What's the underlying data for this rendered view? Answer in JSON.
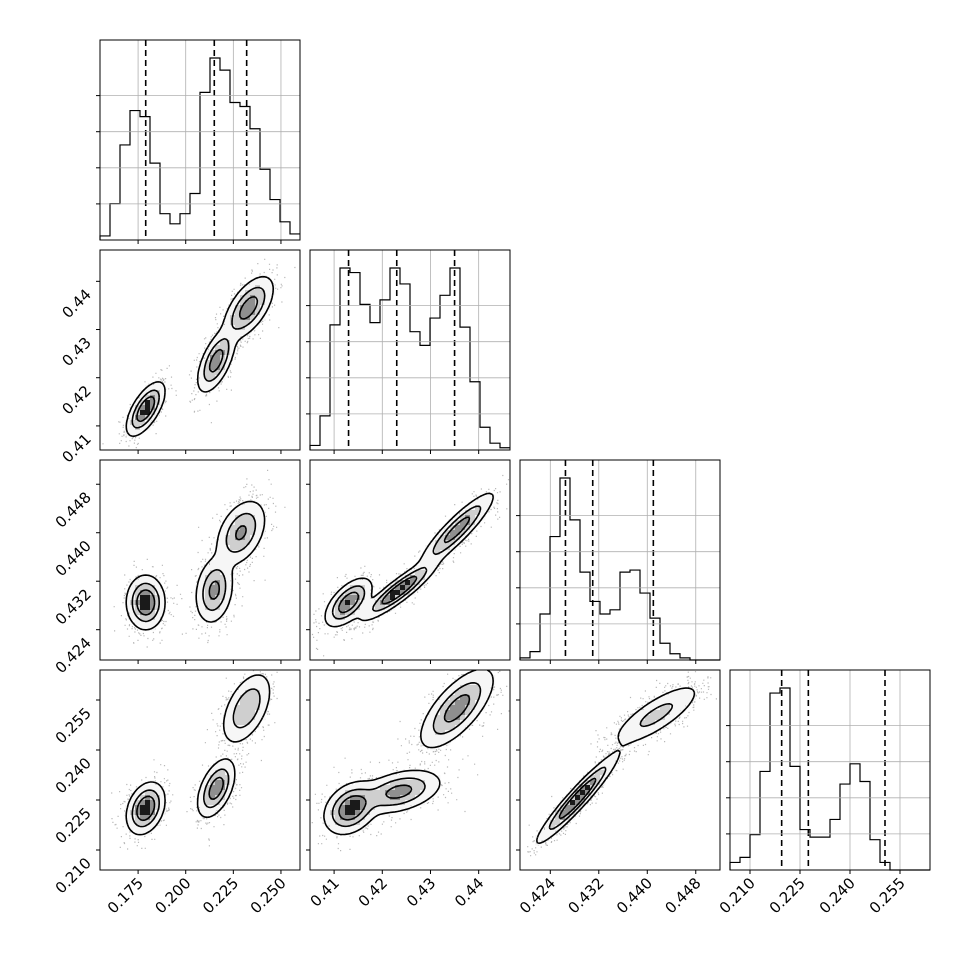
{
  "chart_data": {
    "type": "corner",
    "grid": true,
    "parameters": [
      {
        "id": "p0",
        "range": [
          0.155,
          0.26
        ],
        "ticks": [
          "0.175",
          "0.200",
          "0.225",
          "0.250"
        ],
        "tick_values": [
          0.175,
          0.2,
          0.225,
          0.25
        ],
        "quantiles": [
          0.179,
          0.215,
          0.232
        ],
        "hist": {
          "start": 0.155,
          "step": 0.00525,
          "counts": [
            0.02,
            0.18,
            0.47,
            0.64,
            0.61,
            0.38,
            0.13,
            0.08,
            0.13,
            0.23,
            0.73,
            0.9,
            0.84,
            0.68,
            0.66,
            0.55,
            0.35,
            0.2,
            0.09,
            0.03
          ]
        }
      },
      {
        "id": "p1",
        "range": [
          0.405,
          0.4465
        ],
        "ticks": [
          "0.41",
          "0.42",
          "0.43",
          "0.44"
        ],
        "tick_values": [
          0.41,
          0.42,
          0.43,
          0.44
        ],
        "quantiles": [
          0.413,
          0.423,
          0.435
        ],
        "hist": {
          "start": 0.405,
          "step": 0.002075,
          "counts": [
            0.02,
            0.15,
            0.55,
            0.8,
            0.78,
            0.64,
            0.56,
            0.66,
            0.8,
            0.73,
            0.52,
            0.46,
            0.58,
            0.68,
            0.8,
            0.54,
            0.3,
            0.1,
            0.03,
            0.01
          ]
        }
      },
      {
        "id": "p2",
        "range": [
          0.419,
          0.452
        ],
        "ticks": [
          "0.424",
          "0.432",
          "0.440",
          "0.448"
        ],
        "tick_values": [
          0.424,
          0.432,
          0.44,
          0.448
        ],
        "quantiles": [
          0.4265,
          0.431,
          0.441
        ],
        "hist": {
          "start": 0.419,
          "step": 0.00165,
          "counts": [
            0.01,
            0.04,
            0.22,
            0.59,
            0.87,
            0.67,
            0.42,
            0.28,
            0.22,
            0.24,
            0.42,
            0.43,
            0.32,
            0.2,
            0.08,
            0.03,
            0.01,
            0.0,
            0.0,
            0.0
          ]
        }
      },
      {
        "id": "p3",
        "range": [
          0.204,
          0.264
        ],
        "ticks": [
          "0.210",
          "0.225",
          "0.240",
          "0.255"
        ],
        "tick_values": [
          0.21,
          0.225,
          0.24,
          0.255
        ],
        "quantiles": [
          0.2195,
          0.2275,
          0.2505
        ],
        "hist": {
          "start": 0.204,
          "step": 0.003,
          "counts": [
            0.03,
            0.05,
            0.14,
            0.39,
            0.7,
            0.72,
            0.41,
            0.16,
            0.13,
            0.13,
            0.2,
            0.34,
            0.42,
            0.35,
            0.12,
            0.03,
            0.0,
            0.0,
            0.0,
            0.0
          ]
        }
      }
    ],
    "pairs": [
      {
        "row": 1,
        "col": 0,
        "modes": [
          {
            "x": 0.179,
            "y": 0.4135,
            "sx": 0.0045,
            "sy": 0.0025,
            "r": 0.65,
            "w": 0.3
          },
          {
            "x": 0.216,
            "y": 0.4235,
            "sx": 0.0045,
            "sy": 0.003,
            "r": 0.6,
            "w": 0.3
          },
          {
            "x": 0.233,
            "y": 0.4345,
            "sx": 0.006,
            "sy": 0.003,
            "r": 0.6,
            "w": 0.4
          }
        ]
      },
      {
        "row": 2,
        "col": 0,
        "modes": [
          {
            "x": 0.179,
            "y": 0.4285,
            "sx": 0.0045,
            "sy": 0.002,
            "r": 0.0,
            "w": 0.35
          },
          {
            "x": 0.215,
            "y": 0.4305,
            "sx": 0.0045,
            "sy": 0.0025,
            "r": 0.2,
            "w": 0.3
          },
          {
            "x": 0.229,
            "y": 0.44,
            "sx": 0.006,
            "sy": 0.0025,
            "r": 0.4,
            "w": 0.35
          }
        ]
      },
      {
        "row": 2,
        "col": 1,
        "modes": [
          {
            "x": 0.413,
            "y": 0.4285,
            "sx": 0.0022,
            "sy": 0.0018,
            "r": 0.6,
            "w": 0.3
          },
          {
            "x": 0.4235,
            "y": 0.4305,
            "sx": 0.0035,
            "sy": 0.0022,
            "r": 0.9,
            "w": 0.35
          },
          {
            "x": 0.4355,
            "y": 0.4405,
            "sx": 0.0035,
            "sy": 0.0028,
            "r": 0.9,
            "w": 0.35
          }
        ]
      },
      {
        "row": 3,
        "col": 0,
        "modes": [
          {
            "x": 0.179,
            "y": 0.2225,
            "sx": 0.0045,
            "sy": 0.0035,
            "r": 0.3,
            "w": 0.35
          },
          {
            "x": 0.216,
            "y": 0.2285,
            "sx": 0.0045,
            "sy": 0.004,
            "r": 0.5,
            "w": 0.3
          },
          {
            "x": 0.232,
            "y": 0.2525,
            "sx": 0.006,
            "sy": 0.005,
            "r": 0.5,
            "w": 0.35
          }
        ]
      },
      {
        "row": 3,
        "col": 1,
        "modes": [
          {
            "x": 0.4135,
            "y": 0.2225,
            "sx": 0.0025,
            "sy": 0.0035,
            "r": 0.3,
            "w": 0.3
          },
          {
            "x": 0.4235,
            "y": 0.2275,
            "sx": 0.004,
            "sy": 0.003,
            "r": 0.4,
            "w": 0.3
          },
          {
            "x": 0.4355,
            "y": 0.2525,
            "sx": 0.0035,
            "sy": 0.0055,
            "r": 0.7,
            "w": 0.4
          }
        ]
      },
      {
        "row": 3,
        "col": 2,
        "modes": [
          {
            "x": 0.4285,
            "y": 0.2255,
            "sx": 0.003,
            "sy": 0.006,
            "r": 0.95,
            "w": 0.6
          },
          {
            "x": 0.4415,
            "y": 0.2505,
            "sx": 0.0035,
            "sy": 0.0045,
            "r": 0.8,
            "w": 0.4
          }
        ]
      }
    ]
  }
}
